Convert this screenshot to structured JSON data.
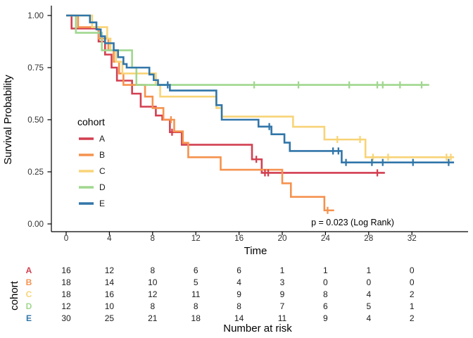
{
  "chart_data": {
    "type": "line",
    "subtype": "kaplan-meier-step",
    "title": "",
    "xlabel": "Time",
    "ylabel": "Survival Probability",
    "annotation": "p = 0.023 (Log Rank)",
    "legend_title": "cohort",
    "legend_position": "inside-left",
    "grid": false,
    "xlim": [
      0,
      36.5
    ],
    "ylim": [
      0,
      1
    ],
    "x_ticks": [
      0,
      4,
      8,
      12,
      16,
      20,
      24,
      28,
      32
    ],
    "y_ticks": [
      {
        "v": 0.0,
        "label": "0.00"
      },
      {
        "v": 0.25,
        "label": "0.25"
      },
      {
        "v": 0.5,
        "label": "0.50"
      },
      {
        "v": 0.75,
        "label": "0.75"
      },
      {
        "v": 1.0,
        "label": "1.00"
      }
    ],
    "series": [
      {
        "name": "A",
        "color": "#D23F50",
        "end": 29.5,
        "points": [
          [
            0,
            1.0
          ],
          [
            0.5,
            0.9375
          ],
          [
            3.0,
            0.875
          ],
          [
            3.6,
            0.8125
          ],
          [
            4.2,
            0.75
          ],
          [
            4.7,
            0.6875
          ],
          [
            6.1,
            0.625
          ],
          [
            6.9,
            0.5625
          ],
          [
            8.3,
            0.52
          ],
          [
            8.9,
            0.5
          ],
          [
            9.6,
            0.44
          ],
          [
            10.7,
            0.38
          ],
          [
            17.2,
            0.31
          ],
          [
            18.1,
            0.245
          ]
        ],
        "censors": [
          [
            9.8,
            0.44
          ],
          [
            17.6,
            0.31
          ],
          [
            18.4,
            0.245
          ],
          [
            18.7,
            0.245
          ],
          [
            28.8,
            0.245
          ]
        ]
      },
      {
        "name": "B",
        "color": "#F5924E",
        "end": 24.8,
        "points": [
          [
            0,
            1.0
          ],
          [
            1.1,
            0.944
          ],
          [
            3.0,
            0.889
          ],
          [
            3.9,
            0.833
          ],
          [
            4.4,
            0.778
          ],
          [
            4.9,
            0.722
          ],
          [
            5.3,
            0.667
          ],
          [
            7.3,
            0.611
          ],
          [
            8.0,
            0.556
          ],
          [
            9.0,
            0.5
          ],
          [
            10.0,
            0.444
          ],
          [
            10.8,
            0.389
          ],
          [
            11.3,
            0.32
          ],
          [
            14.3,
            0.26
          ],
          [
            20.0,
            0.195
          ],
          [
            20.8,
            0.13
          ],
          [
            23.9,
            0.065
          ]
        ],
        "censors": [
          [
            9.7,
            0.5
          ],
          [
            24.2,
            0.065
          ]
        ]
      },
      {
        "name": "C",
        "color": "#F8D477",
        "end": 35.9,
        "points": [
          [
            0,
            1.0
          ],
          [
            2.4,
            0.944
          ],
          [
            3.8,
            0.889
          ],
          [
            4.1,
            0.833
          ],
          [
            4.6,
            0.778
          ],
          [
            5.2,
            0.722
          ],
          [
            8.3,
            0.667
          ],
          [
            8.7,
            0.611
          ],
          [
            13.9,
            0.556
          ],
          [
            14.4,
            0.515
          ],
          [
            21.0,
            0.466
          ],
          [
            23.9,
            0.405
          ],
          [
            27.7,
            0.32
          ]
        ],
        "censors": [
          [
            25.1,
            0.405
          ],
          [
            27.2,
            0.405
          ],
          [
            28.4,
            0.32
          ],
          [
            29.8,
            0.32
          ],
          [
            35.2,
            0.32
          ],
          [
            35.6,
            0.32
          ]
        ]
      },
      {
        "name": "D",
        "color": "#A0D78F",
        "end": 33.6,
        "points": [
          [
            0,
            1.0
          ],
          [
            0.9,
            0.917
          ],
          [
            3.3,
            0.833
          ],
          [
            6.1,
            0.75
          ],
          [
            6.5,
            0.667
          ]
        ],
        "censors": [
          [
            17.4,
            0.667
          ],
          [
            21.5,
            0.667
          ],
          [
            26.2,
            0.667
          ],
          [
            28.8,
            0.667
          ],
          [
            29.3,
            0.667
          ],
          [
            30.9,
            0.667
          ],
          [
            32.9,
            0.667
          ]
        ]
      },
      {
        "name": "E",
        "color": "#3176A9",
        "end": 35.9,
        "points": [
          [
            0,
            1.0
          ],
          [
            2.2,
            0.967
          ],
          [
            2.8,
            0.933
          ],
          [
            3.2,
            0.9
          ],
          [
            3.6,
            0.867
          ],
          [
            4.4,
            0.833
          ],
          [
            4.8,
            0.8
          ],
          [
            5.3,
            0.767
          ],
          [
            5.6,
            0.75
          ],
          [
            7.7,
            0.717
          ],
          [
            8.1,
            0.69
          ],
          [
            8.5,
            0.667
          ],
          [
            9.6,
            0.64
          ],
          [
            13.9,
            0.57
          ],
          [
            14.4,
            0.5
          ],
          [
            17.8,
            0.467
          ],
          [
            19.0,
            0.43
          ],
          [
            20.2,
            0.39
          ],
          [
            20.7,
            0.35
          ],
          [
            25.5,
            0.295
          ]
        ],
        "censors": [
          [
            9.4,
            0.667
          ],
          [
            18.8,
            0.467
          ],
          [
            24.7,
            0.35
          ],
          [
            25.2,
            0.35
          ],
          [
            25.9,
            0.295
          ],
          [
            28.3,
            0.295
          ],
          [
            29.3,
            0.295
          ],
          [
            32.1,
            0.295
          ],
          [
            35.4,
            0.295
          ]
        ]
      }
    ],
    "risk_table": {
      "title": "Number at risk",
      "ylabel": "cohort",
      "times": [
        0,
        4,
        8,
        12,
        16,
        20,
        24,
        28,
        32
      ],
      "rows": [
        {
          "name": "A",
          "color": "#D23F50",
          "values": [
            16,
            12,
            8,
            6,
            6,
            1,
            1,
            1,
            0
          ]
        },
        {
          "name": "B",
          "color": "#F5924E",
          "values": [
            18,
            14,
            10,
            5,
            4,
            3,
            0,
            0,
            0
          ]
        },
        {
          "name": "C",
          "color": "#F8D477",
          "values": [
            18,
            16,
            12,
            11,
            9,
            9,
            8,
            4,
            2
          ]
        },
        {
          "name": "D",
          "color": "#A0D78F",
          "values": [
            12,
            10,
            8,
            8,
            8,
            7,
            6,
            5,
            1
          ]
        },
        {
          "name": "E",
          "color": "#3176A9",
          "values": [
            30,
            25,
            21,
            18,
            14,
            11,
            9,
            4,
            2
          ]
        }
      ]
    }
  }
}
